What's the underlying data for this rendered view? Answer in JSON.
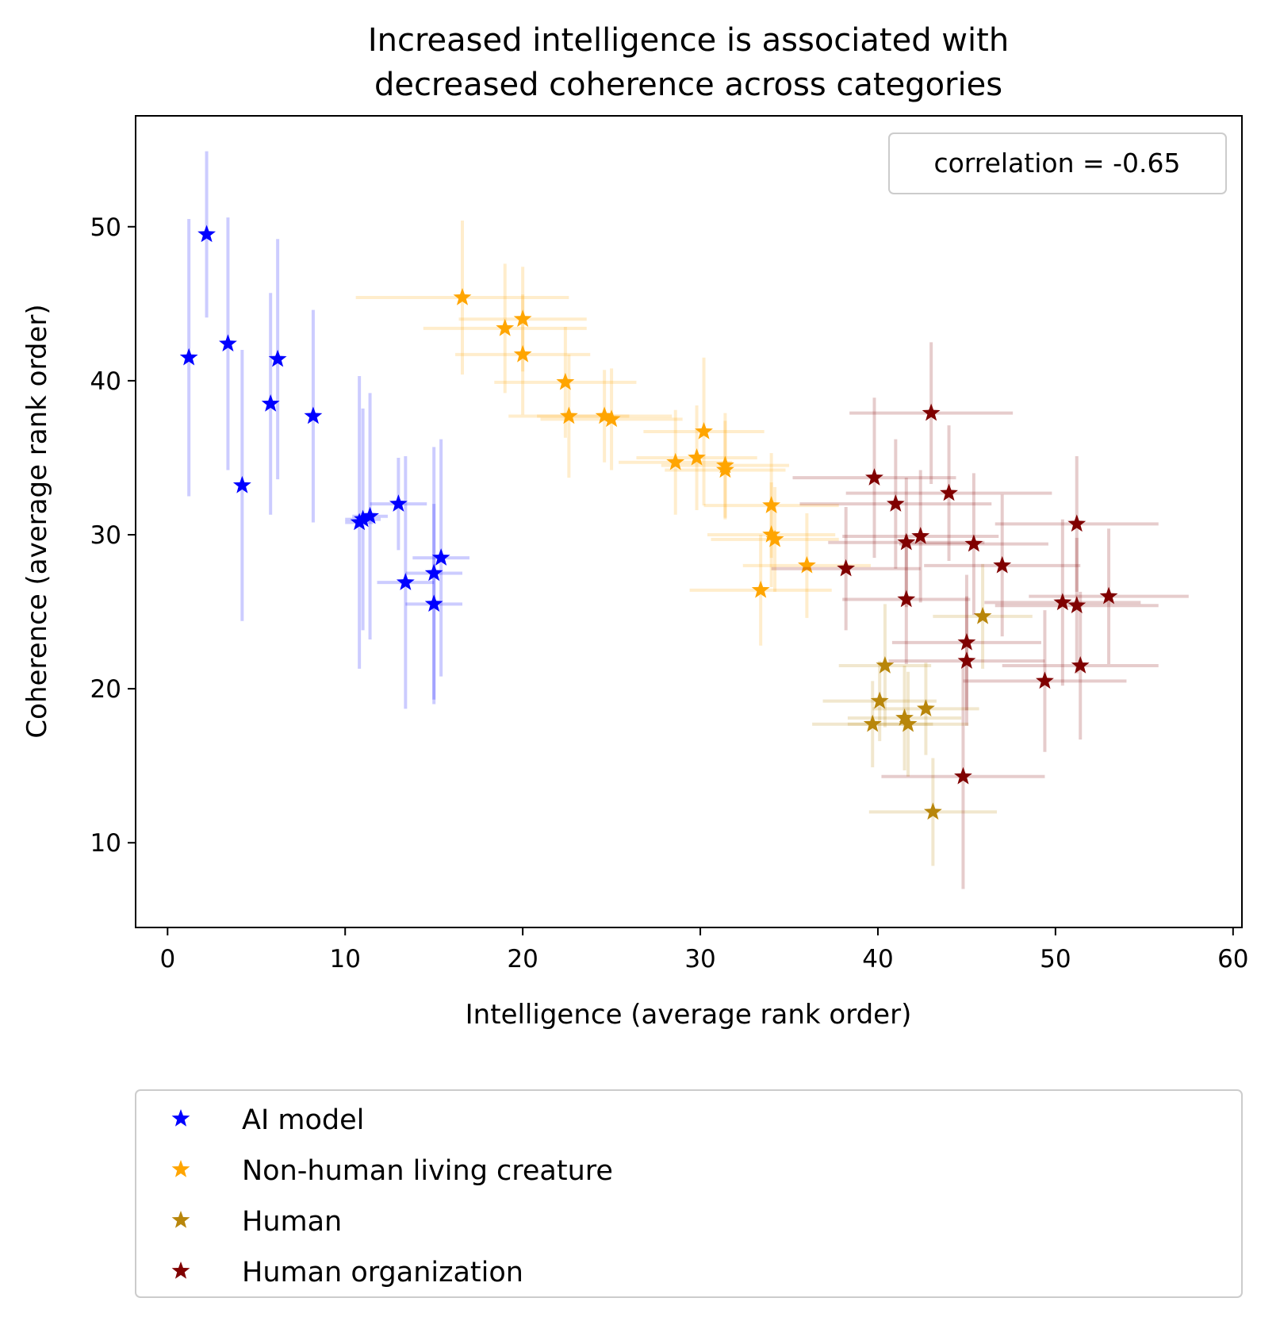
{
  "chart_data": {
    "type": "scatter",
    "title": [
      "Increased intelligence is associated with",
      "decreased coherence across categories"
    ],
    "xlabel": "Intelligence (average rank order)",
    "ylabel": "Coherence (average rank order)",
    "xlim": [
      -1.8,
      60.5
    ],
    "ylim": [
      4.5,
      57.2
    ],
    "xticks": [
      0,
      10,
      20,
      30,
      40,
      50,
      60
    ],
    "yticks": [
      10,
      20,
      30,
      40,
      50
    ],
    "grid": false,
    "annotation": "correlation = -0.65",
    "annotation_position": "top-right",
    "legend_position": "below-plot",
    "series": [
      {
        "name": "AI model",
        "color": "#0000ff",
        "points": [
          {
            "x": 2.2,
            "y": 49.5,
            "xerr": 0.0,
            "yerr": 5.4
          },
          {
            "x": 1.2,
            "y": 41.5,
            "xerr": 0.0,
            "yerr": 9.0
          },
          {
            "x": 3.4,
            "y": 42.4,
            "xerr": 0.0,
            "yerr": 8.2
          },
          {
            "x": 6.2,
            "y": 41.4,
            "xerr": 0.0,
            "yerr": 7.8
          },
          {
            "x": 5.8,
            "y": 38.5,
            "xerr": 0.0,
            "yerr": 7.2
          },
          {
            "x": 8.2,
            "y": 37.7,
            "xerr": 0.0,
            "yerr": 6.9
          },
          {
            "x": 4.2,
            "y": 33.2,
            "xerr": 0.0,
            "yerr": 8.8
          },
          {
            "x": 13.0,
            "y": 32.0,
            "xerr": 1.6,
            "yerr": 3.0
          },
          {
            "x": 10.8,
            "y": 30.8,
            "xerr": 0.8,
            "yerr": 9.5
          },
          {
            "x": 11.0,
            "y": 31.0,
            "xerr": 1.0,
            "yerr": 7.2
          },
          {
            "x": 11.4,
            "y": 31.2,
            "xerr": 1.0,
            "yerr": 8.0
          },
          {
            "x": 15.4,
            "y": 28.5,
            "xerr": 1.6,
            "yerr": 7.7
          },
          {
            "x": 13.4,
            "y": 26.9,
            "xerr": 1.6,
            "yerr": 8.2
          },
          {
            "x": 15.0,
            "y": 27.5,
            "xerr": 1.6,
            "yerr": 8.2
          },
          {
            "x": 15.0,
            "y": 25.5,
            "xerr": 1.6,
            "yerr": 6.5
          }
        ]
      },
      {
        "name": "Non-human living creature",
        "color": "#ffa500",
        "points": [
          {
            "x": 16.6,
            "y": 45.4,
            "xerr": 6.0,
            "yerr": 5.0
          },
          {
            "x": 20.0,
            "y": 44.0,
            "xerr": 3.6,
            "yerr": 3.4
          },
          {
            "x": 19.0,
            "y": 43.4,
            "xerr": 4.6,
            "yerr": 4.2
          },
          {
            "x": 20.0,
            "y": 41.7,
            "xerr": 3.8,
            "yerr": 3.9
          },
          {
            "x": 22.4,
            "y": 39.9,
            "xerr": 4.0,
            "yerr": 3.6
          },
          {
            "x": 22.6,
            "y": 37.7,
            "xerr": 3.4,
            "yerr": 4.0
          },
          {
            "x": 24.6,
            "y": 37.7,
            "xerr": 3.8,
            "yerr": 3.0
          },
          {
            "x": 25.0,
            "y": 37.5,
            "xerr": 4.0,
            "yerr": 3.3
          },
          {
            "x": 30.2,
            "y": 36.7,
            "xerr": 3.4,
            "yerr": 4.8
          },
          {
            "x": 28.6,
            "y": 34.7,
            "xerr": 3.2,
            "yerr": 3.4
          },
          {
            "x": 29.8,
            "y": 35.0,
            "xerr": 3.4,
            "yerr": 3.4
          },
          {
            "x": 31.4,
            "y": 34.5,
            "xerr": 3.6,
            "yerr": 3.4
          },
          {
            "x": 31.4,
            "y": 34.2,
            "xerr": 3.4,
            "yerr": 3.2
          },
          {
            "x": 34.0,
            "y": 31.9,
            "xerr": 3.8,
            "yerr": 3.4
          },
          {
            "x": 34.0,
            "y": 30.0,
            "xerr": 3.6,
            "yerr": 3.4
          },
          {
            "x": 34.2,
            "y": 29.7,
            "xerr": 3.6,
            "yerr": 3.4
          },
          {
            "x": 36.0,
            "y": 28.0,
            "xerr": 3.6,
            "yerr": 3.4
          },
          {
            "x": 33.4,
            "y": 26.4,
            "xerr": 4.0,
            "yerr": 3.6
          }
        ]
      },
      {
        "name": "Human",
        "color": "#b8860b",
        "points": [
          {
            "x": 45.9,
            "y": 24.7,
            "xerr": 2.8,
            "yerr": 3.4
          },
          {
            "x": 40.4,
            "y": 21.5,
            "xerr": 2.6,
            "yerr": 4.0
          },
          {
            "x": 40.1,
            "y": 19.2,
            "xerr": 3.2,
            "yerr": 2.6
          },
          {
            "x": 42.7,
            "y": 18.7,
            "xerr": 3.0,
            "yerr": 3.0
          },
          {
            "x": 41.5,
            "y": 18.1,
            "xerr": 3.2,
            "yerr": 3.4
          },
          {
            "x": 41.7,
            "y": 17.7,
            "xerr": 3.4,
            "yerr": 3.4
          },
          {
            "x": 39.7,
            "y": 17.7,
            "xerr": 3.4,
            "yerr": 2.8
          },
          {
            "x": 43.1,
            "y": 12.0,
            "xerr": 3.6,
            "yerr": 3.5
          }
        ]
      },
      {
        "name": "Human organization",
        "color": "#800000",
        "points": [
          {
            "x": 43.0,
            "y": 37.9,
            "xerr": 4.6,
            "yerr": 4.6
          },
          {
            "x": 39.8,
            "y": 33.7,
            "xerr": 4.6,
            "yerr": 5.2
          },
          {
            "x": 44.0,
            "y": 32.7,
            "xerr": 5.8,
            "yerr": 4.4
          },
          {
            "x": 41.0,
            "y": 32.0,
            "xerr": 5.4,
            "yerr": 4.2
          },
          {
            "x": 51.2,
            "y": 30.7,
            "xerr": 4.6,
            "yerr": 4.4
          },
          {
            "x": 42.4,
            "y": 29.9,
            "xerr": 4.4,
            "yerr": 4.3
          },
          {
            "x": 41.6,
            "y": 29.5,
            "xerr": 4.4,
            "yerr": 4.2
          },
          {
            "x": 45.4,
            "y": 29.4,
            "xerr": 4.2,
            "yerr": 4.6
          },
          {
            "x": 47.0,
            "y": 28.0,
            "xerr": 4.4,
            "yerr": 4.6
          },
          {
            "x": 38.2,
            "y": 27.8,
            "xerr": 4.2,
            "yerr": 4.0
          },
          {
            "x": 53.0,
            "y": 26.0,
            "xerr": 4.5,
            "yerr": 4.4
          },
          {
            "x": 41.6,
            "y": 25.8,
            "xerr": 3.6,
            "yerr": 4.2
          },
          {
            "x": 50.4,
            "y": 25.6,
            "xerr": 4.4,
            "yerr": 5.4
          },
          {
            "x": 51.2,
            "y": 25.4,
            "xerr": 4.6,
            "yerr": 4.4
          },
          {
            "x": 45.0,
            "y": 23.0,
            "xerr": 4.2,
            "yerr": 4.4
          },
          {
            "x": 45.0,
            "y": 21.8,
            "xerr": 4.4,
            "yerr": 4.2
          },
          {
            "x": 51.4,
            "y": 21.5,
            "xerr": 4.4,
            "yerr": 4.8
          },
          {
            "x": 49.4,
            "y": 20.5,
            "xerr": 4.6,
            "yerr": 4.6
          },
          {
            "x": 44.8,
            "y": 14.3,
            "xerr": 4.6,
            "yerr": 7.3
          }
        ]
      }
    ]
  }
}
